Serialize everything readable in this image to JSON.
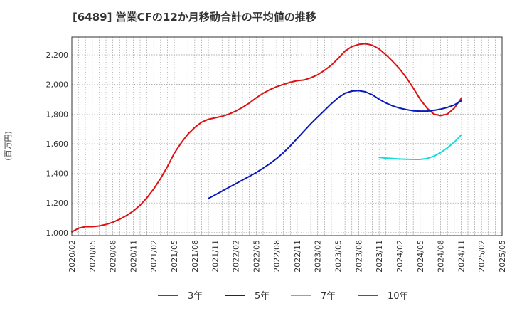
{
  "chart_data": {
    "type": "line",
    "title": "[6489]  営業CFの12か月移動合計の平均値の推移",
    "ylabel": "(百万円)",
    "xlabel": "",
    "ylim": [
      980,
      2320
    ],
    "yticks": [
      1000,
      1200,
      1400,
      1600,
      1800,
      2000,
      2200
    ],
    "ytick_labels": [
      "1,000",
      "1,200",
      "1,400",
      "1,600",
      "1,800",
      "2,000",
      "2,200"
    ],
    "xticks": [
      "2020/02",
      "2020/05",
      "2020/08",
      "2020/11",
      "2021/02",
      "2021/05",
      "2021/08",
      "2021/11",
      "2022/02",
      "2022/05",
      "2022/08",
      "2022/11",
      "2023/02",
      "2023/05",
      "2023/08",
      "2023/11",
      "2024/02",
      "2024/05",
      "2024/08",
      "2024/11",
      "2025/02",
      "2025/05"
    ],
    "grid": true,
    "legend_position": "bottom",
    "series": [
      {
        "name": "3年",
        "color": "#dd1111",
        "points": [
          [
            "2020/02",
            1005
          ],
          [
            "2020/03",
            1030
          ],
          [
            "2020/04",
            1040
          ],
          [
            "2020/05",
            1040
          ],
          [
            "2020/06",
            1045
          ],
          [
            "2020/07",
            1055
          ],
          [
            "2020/08",
            1070
          ],
          [
            "2020/09",
            1090
          ],
          [
            "2020/10",
            1115
          ],
          [
            "2020/11",
            1145
          ],
          [
            "2020/12",
            1185
          ],
          [
            "2021/01",
            1235
          ],
          [
            "2021/02",
            1295
          ],
          [
            "2021/03",
            1365
          ],
          [
            "2021/04",
            1445
          ],
          [
            "2021/05",
            1535
          ],
          [
            "2021/06",
            1605
          ],
          [
            "2021/07",
            1665
          ],
          [
            "2021/08",
            1710
          ],
          [
            "2021/09",
            1745
          ],
          [
            "2021/10",
            1765
          ],
          [
            "2021/11",
            1775
          ],
          [
            "2021/12",
            1785
          ],
          [
            "2022/01",
            1800
          ],
          [
            "2022/02",
            1820
          ],
          [
            "2022/03",
            1845
          ],
          [
            "2022/04",
            1875
          ],
          [
            "2022/05",
            1910
          ],
          [
            "2022/06",
            1940
          ],
          [
            "2022/07",
            1965
          ],
          [
            "2022/08",
            1985
          ],
          [
            "2022/09",
            2000
          ],
          [
            "2022/10",
            2015
          ],
          [
            "2022/11",
            2025
          ],
          [
            "2022/12",
            2030
          ],
          [
            "2023/01",
            2045
          ],
          [
            "2023/02",
            2065
          ],
          [
            "2023/03",
            2095
          ],
          [
            "2023/04",
            2130
          ],
          [
            "2023/05",
            2175
          ],
          [
            "2023/06",
            2225
          ],
          [
            "2023/07",
            2255
          ],
          [
            "2023/08",
            2270
          ],
          [
            "2023/09",
            2275
          ],
          [
            "2023/10",
            2265
          ],
          [
            "2023/11",
            2240
          ],
          [
            "2023/12",
            2200
          ],
          [
            "2024/01",
            2155
          ],
          [
            "2024/02",
            2105
          ],
          [
            "2024/03",
            2045
          ],
          [
            "2024/04",
            1975
          ],
          [
            "2024/05",
            1900
          ],
          [
            "2024/06",
            1840
          ],
          [
            "2024/07",
            1800
          ],
          [
            "2024/08",
            1790
          ],
          [
            "2024/09",
            1800
          ],
          [
            "2024/10",
            1840
          ],
          [
            "2024/11",
            1905
          ]
        ]
      },
      {
        "name": "5年",
        "color": "#0a1ab8",
        "points": [
          [
            "2021/10",
            1230
          ],
          [
            "2021/11",
            1255
          ],
          [
            "2021/12",
            1280
          ],
          [
            "2022/01",
            1305
          ],
          [
            "2022/02",
            1330
          ],
          [
            "2022/03",
            1355
          ],
          [
            "2022/04",
            1380
          ],
          [
            "2022/05",
            1405
          ],
          [
            "2022/06",
            1435
          ],
          [
            "2022/07",
            1465
          ],
          [
            "2022/08",
            1500
          ],
          [
            "2022/09",
            1540
          ],
          [
            "2022/10",
            1585
          ],
          [
            "2022/11",
            1635
          ],
          [
            "2022/12",
            1685
          ],
          [
            "2023/01",
            1735
          ],
          [
            "2023/02",
            1780
          ],
          [
            "2023/03",
            1825
          ],
          [
            "2023/04",
            1870
          ],
          [
            "2023/05",
            1910
          ],
          [
            "2023/06",
            1940
          ],
          [
            "2023/07",
            1955
          ],
          [
            "2023/08",
            1958
          ],
          [
            "2023/09",
            1950
          ],
          [
            "2023/10",
            1930
          ],
          [
            "2023/11",
            1900
          ],
          [
            "2023/12",
            1875
          ],
          [
            "2024/01",
            1855
          ],
          [
            "2024/02",
            1840
          ],
          [
            "2024/03",
            1830
          ],
          [
            "2024/04",
            1822
          ],
          [
            "2024/05",
            1820
          ],
          [
            "2024/06",
            1820
          ],
          [
            "2024/07",
            1825
          ],
          [
            "2024/08",
            1833
          ],
          [
            "2024/09",
            1845
          ],
          [
            "2024/10",
            1862
          ],
          [
            "2024/11",
            1888
          ]
        ]
      },
      {
        "name": "7年",
        "color": "#11dddd",
        "points": [
          [
            "2023/11",
            1508
          ],
          [
            "2023/12",
            1503
          ],
          [
            "2024/01",
            1500
          ],
          [
            "2024/02",
            1497
          ],
          [
            "2024/03",
            1495
          ],
          [
            "2024/04",
            1494
          ],
          [
            "2024/05",
            1494
          ],
          [
            "2024/06",
            1500
          ],
          [
            "2024/07",
            1515
          ],
          [
            "2024/08",
            1540
          ],
          [
            "2024/09",
            1572
          ],
          [
            "2024/10",
            1610
          ],
          [
            "2024/11",
            1658
          ]
        ]
      },
      {
        "name": "10年",
        "color": "#118811",
        "points": []
      }
    ]
  }
}
